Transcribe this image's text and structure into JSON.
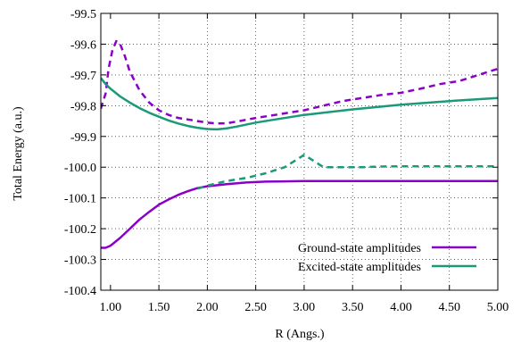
{
  "chart_data": {
    "type": "line",
    "title": "",
    "xlabel": "R (Angs.)",
    "ylabel": "Total Energy (a.u.)",
    "xlim": [
      0.9,
      5.0
    ],
    "ylim": [
      -100.4,
      -99.5
    ],
    "xticks": [
      1.0,
      1.5,
      2.0,
      2.5,
      3.0,
      3.5,
      4.0,
      4.5,
      5.0
    ],
    "xtick_labels": [
      "1.00",
      "1.50",
      "2.00",
      "2.50",
      "3.00",
      "3.50",
      "4.00",
      "4.50",
      "5.00"
    ],
    "yticks": [
      -99.5,
      -99.6,
      -99.7,
      -99.8,
      -99.9,
      -100.0,
      -100.1,
      -100.2,
      -100.3,
      -100.4
    ],
    "ytick_labels": [
      "-99.5",
      "-99.6",
      "-99.7",
      "-99.8",
      "-99.9",
      "-100.0",
      "-100.1",
      "-100.2",
      "-100.3",
      "-100.4"
    ],
    "grid": true,
    "legend_position": "bottom-right",
    "series": [
      {
        "name": "Ground-state amplitudes",
        "color": "#8b00c8",
        "style": "solid",
        "x": [
          0.9,
          0.95,
          1.0,
          1.1,
          1.2,
          1.3,
          1.4,
          1.5,
          1.6,
          1.7,
          1.8,
          1.9,
          2.0,
          2.2,
          2.4,
          2.6,
          2.8,
          3.0,
          3.5,
          4.0,
          4.5,
          5.0
        ],
        "y": [
          -100.262,
          -100.262,
          -100.255,
          -100.23,
          -100.2,
          -100.17,
          -100.145,
          -100.122,
          -100.105,
          -100.09,
          -100.078,
          -100.068,
          -100.062,
          -100.055,
          -100.05,
          -100.047,
          -100.046,
          -100.045,
          -100.045,
          -100.045,
          -100.045,
          -100.045
        ]
      },
      {
        "name": "",
        "color": "#8b00c8",
        "style": "dashed",
        "x": [
          0.9,
          0.95,
          0.98,
          1.02,
          1.06,
          1.1,
          1.15,
          1.2,
          1.3,
          1.4,
          1.5,
          1.6,
          1.7,
          1.8,
          1.9,
          2.0,
          2.1,
          2.2,
          2.3,
          2.5,
          2.7,
          2.9,
          3.0,
          3.2,
          3.4,
          3.6,
          3.8,
          4.0,
          4.2,
          4.4,
          4.6,
          4.8,
          5.0
        ],
        "y": [
          -99.81,
          -99.76,
          -99.68,
          -99.62,
          -99.59,
          -99.6,
          -99.64,
          -99.69,
          -99.75,
          -99.79,
          -99.815,
          -99.83,
          -99.84,
          -99.845,
          -99.85,
          -99.855,
          -99.858,
          -99.857,
          -99.852,
          -99.84,
          -99.83,
          -99.82,
          -99.815,
          -99.8,
          -99.785,
          -99.775,
          -99.765,
          -99.758,
          -99.745,
          -99.73,
          -99.72,
          -99.7,
          -99.68
        ]
      },
      {
        "name": "Excited-state amplitudes",
        "color": "#1a9a78",
        "style": "solid",
        "x": [
          0.9,
          0.95,
          1.0,
          1.1,
          1.2,
          1.3,
          1.4,
          1.5,
          1.6,
          1.7,
          1.8,
          1.9,
          2.0,
          2.1,
          2.2,
          2.3,
          2.5,
          2.7,
          3.0,
          3.5,
          4.0,
          4.5,
          5.0
        ],
        "y": [
          -99.71,
          -99.73,
          -99.745,
          -99.77,
          -99.79,
          -99.808,
          -99.823,
          -99.836,
          -99.848,
          -99.858,
          -99.866,
          -99.872,
          -99.876,
          -99.877,
          -99.874,
          -99.868,
          -99.855,
          -99.845,
          -99.83,
          -99.812,
          -99.797,
          -99.785,
          -99.775
        ]
      },
      {
        "name": "",
        "color": "#1a9a78",
        "style": "dashed",
        "x": [
          1.9,
          2.0,
          2.2,
          2.4,
          2.6,
          2.8,
          2.9,
          3.0,
          3.1,
          3.2,
          3.4,
          3.6,
          3.8,
          4.0,
          4.5,
          5.0
        ],
        "y": [
          -100.07,
          -100.06,
          -100.045,
          -100.035,
          -100.02,
          -100.0,
          -99.98,
          -99.96,
          -99.98,
          -100.0,
          -100.0,
          -100.0,
          -99.998,
          -99.997,
          -99.997,
          -99.997
        ]
      }
    ]
  }
}
